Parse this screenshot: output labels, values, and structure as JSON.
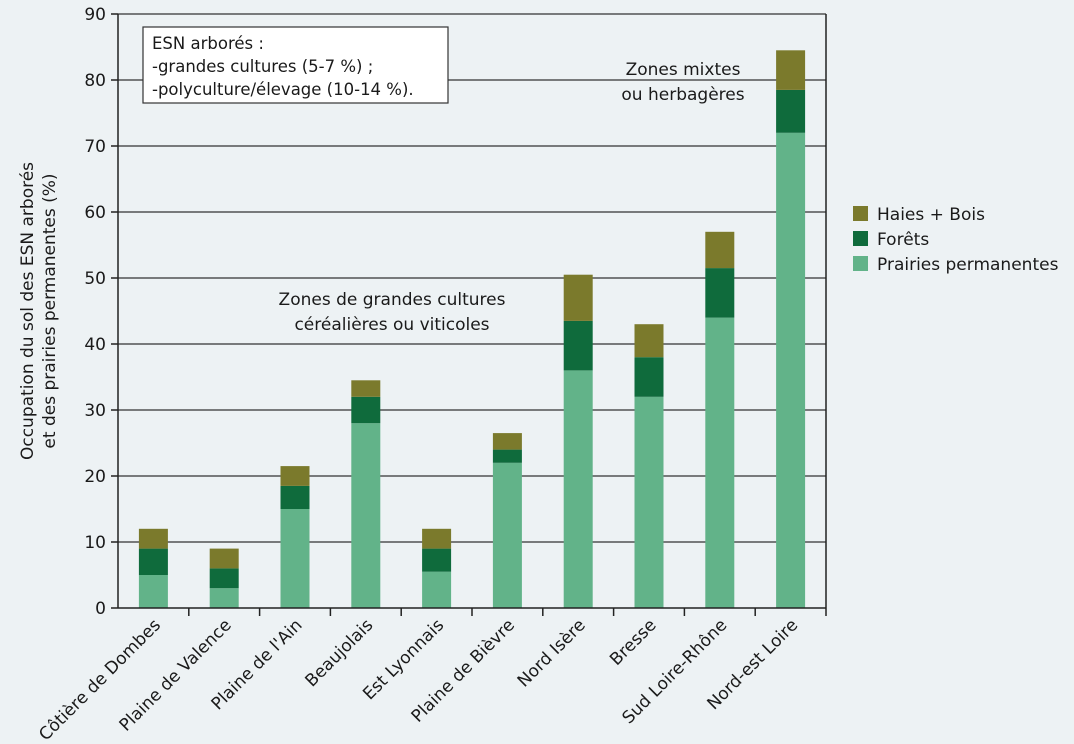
{
  "chart_data": {
    "type": "bar",
    "stacked": true,
    "ylabel_lines": [
      "Occupation du sol des ESN arborés",
      "et des prairies permanentes (%)"
    ],
    "ylim": [
      0,
      90
    ],
    "yticks": [
      0,
      10,
      20,
      30,
      40,
      50,
      60,
      70,
      80,
      90
    ],
    "grid": "horizontal",
    "legend_position": "right",
    "categories": [
      "Côtière de Dombes",
      "Plaine de Valence",
      "Plaine de l'Ain",
      "Beaujolais",
      "Est Lyonnais",
      "Plaine de Bièvre",
      "Nord Isère",
      "Bresse",
      "Sud Loire-Rhône",
      "Nord-est Loire"
    ],
    "series": [
      {
        "name": "Prairies permanentes",
        "color": "#62b389",
        "values": [
          5,
          3,
          15,
          28,
          5.5,
          22,
          36,
          32,
          44,
          72
        ]
      },
      {
        "name": "Forêts",
        "color": "#0f6b3c",
        "values": [
          4,
          3,
          3.5,
          4,
          3.5,
          2,
          7.5,
          6,
          7.5,
          6.5
        ]
      },
      {
        "name": "Haies + Bois",
        "color": "#7b7a2c",
        "values": [
          3,
          3,
          3,
          2.5,
          3,
          2.5,
          7,
          5,
          5.5,
          6
        ]
      }
    ],
    "legend_order": [
      "Haies + Bois",
      "Forêts",
      "Prairies permanentes"
    ],
    "annotations": {
      "box_lines": [
        "ESN arborés :",
        "-grandes cultures (5-7 %) ;",
        "-polyculture/élevage (10-14 %)."
      ],
      "middle_lines": [
        "Zones de grandes cultures",
        "céréalières ou viticoles"
      ],
      "right_lines": [
        "Zones mixtes",
        "ou herbagères"
      ]
    }
  }
}
